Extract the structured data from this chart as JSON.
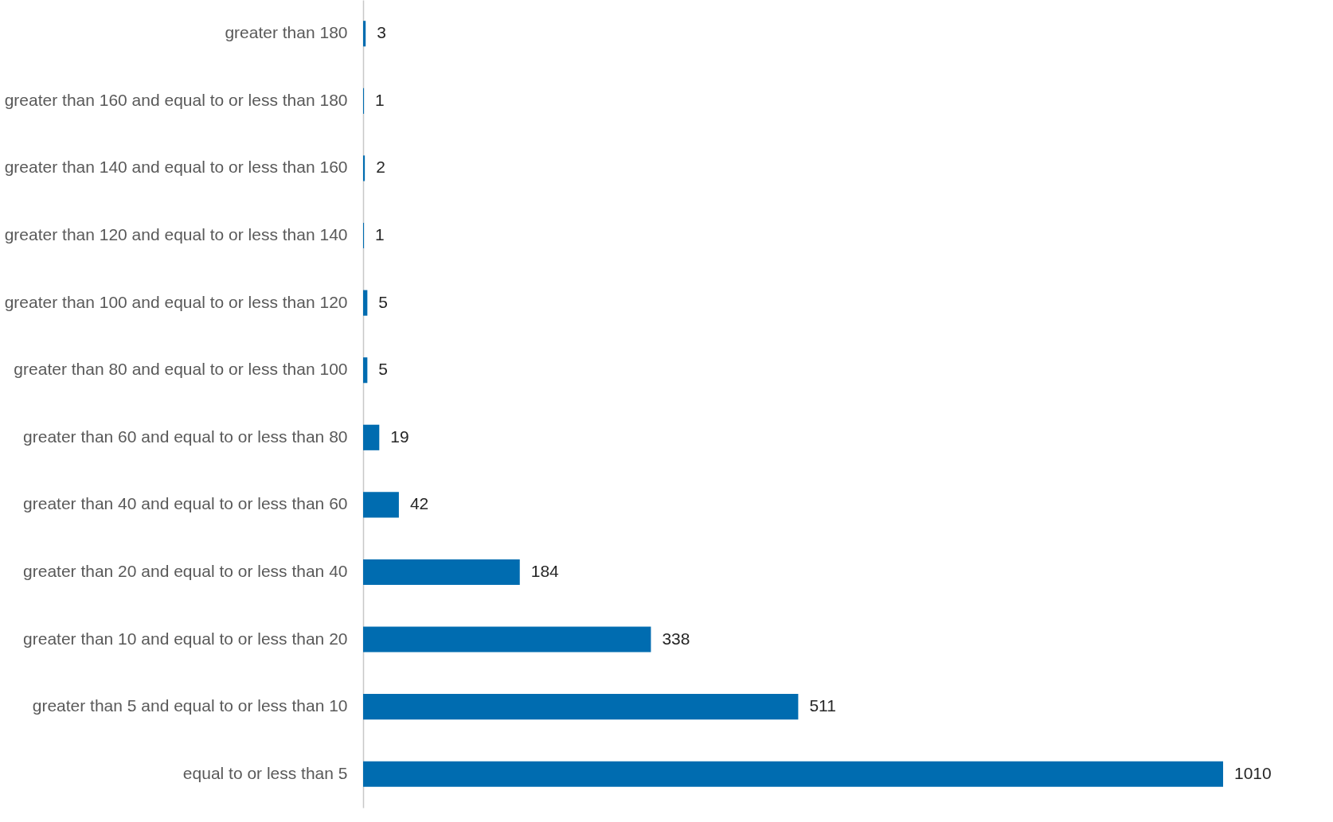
{
  "chart_data": {
    "type": "bar",
    "orientation": "horizontal",
    "data_labels": true,
    "grid": false,
    "tick_labels": "y",
    "categories": [
      "greater than 180",
      "greater than 160 and equal to or less than 180",
      "greater than 140 and equal to or less than 160",
      "greater than 120 and equal to or less than 140",
      "greater than 100 and equal to or less than 120",
      "greater than 80 and equal to or less than 100",
      "greater than 60 and equal to or less than 80",
      "greater than 40 and equal to or less than 60",
      "greater than 20 and equal to or less than 40",
      "greater than 10 and equal to or less than 20",
      "greater than 5 and equal to or less than 10",
      "equal to or less than 5"
    ],
    "values": [
      3,
      1,
      2,
      1,
      5,
      5,
      19,
      42,
      184,
      338,
      511,
      1010
    ],
    "color": "#006cb0"
  }
}
